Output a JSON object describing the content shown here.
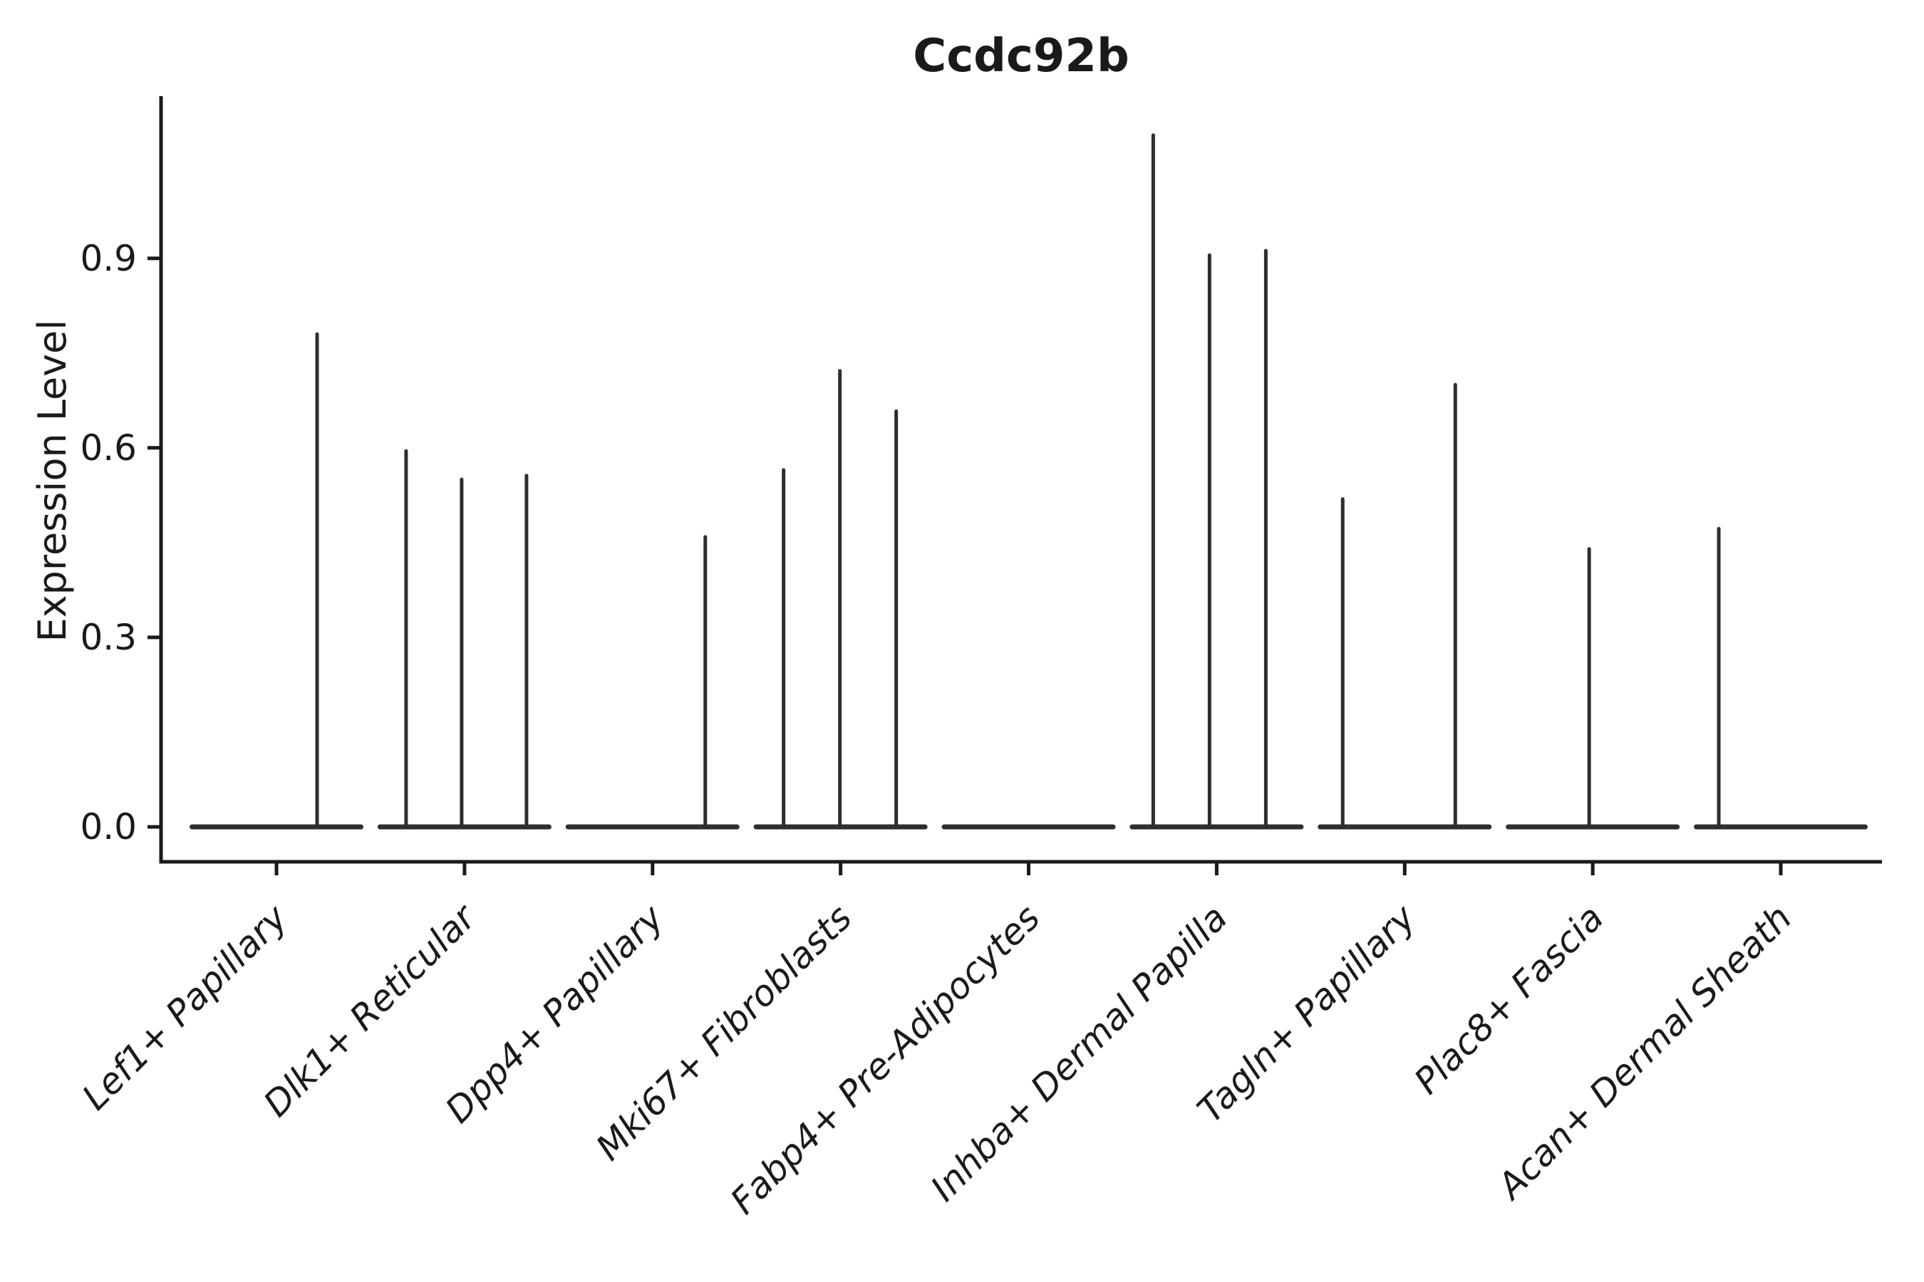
{
  "title": "Ccdc92b",
  "colors": {
    "background": "#ffffff",
    "axis": "#1a1a1a",
    "violin": "#2e2e2e"
  },
  "chart_data": {
    "type": "violin",
    "title": "Ccdc92b",
    "xlabel": "",
    "ylabel": "Expression Level",
    "ylim": [
      0,
      1.16
    ],
    "grid": false,
    "legend": null,
    "ytick_labels": [
      "0.0",
      "0.3",
      "0.6",
      "0.9"
    ],
    "ytick_values": [
      0.0,
      0.3,
      0.6,
      0.9
    ],
    "categories": [
      "Lef1+ Papillary",
      "Dlk1+ Reticular",
      "Dpp4+ Papillary",
      "Mki67+ Fibroblasts",
      "Fabp4+ Pre-Adipocytes",
      "Inhba+ Dermal Papilla",
      "Tagln+ Papillary",
      "Plac8+ Fascia",
      "Acan+ Dermal Sheath"
    ],
    "series": [
      {
        "name": "Lef1+ Papillary",
        "baseline_value": 0.0,
        "spikes": [
          {
            "offset": 57,
            "value": 0.78
          }
        ]
      },
      {
        "name": "Dlk1+ Reticular",
        "baseline_value": 0.0,
        "spikes": [
          {
            "offset": -82,
            "value": 0.595
          },
          {
            "offset": -4,
            "value": 0.55
          },
          {
            "offset": 87,
            "value": 0.556
          }
        ]
      },
      {
        "name": "Dpp4+ Papillary",
        "baseline_value": 0.0,
        "spikes": [
          {
            "offset": 74,
            "value": 0.459
          }
        ]
      },
      {
        "name": "Mki67+ Fibroblasts",
        "baseline_value": 0.0,
        "spikes": [
          {
            "offset": -80,
            "value": 0.565
          },
          {
            "offset": -1,
            "value": 0.722
          },
          {
            "offset": 78,
            "value": 0.658
          }
        ]
      },
      {
        "name": "Fabp4+ Pre-Adipocytes",
        "baseline_value": 0.0,
        "spikes": []
      },
      {
        "name": "Inhba+ Dermal Papilla",
        "baseline_value": 0.0,
        "spikes": [
          {
            "offset": -89,
            "value": 1.095
          },
          {
            "offset": -10,
            "value": 0.905
          },
          {
            "offset": 69,
            "value": 0.912
          }
        ]
      },
      {
        "name": "Tagln+ Papillary",
        "baseline_value": 0.0,
        "spikes": [
          {
            "offset": -87,
            "value": 0.519
          },
          {
            "offset": 71,
            "value": 0.7
          }
        ]
      },
      {
        "name": "Plac8+ Fascia",
        "baseline_value": 0.0,
        "spikes": [
          {
            "offset": -5,
            "value": 0.44
          }
        ]
      },
      {
        "name": "Acan+ Dermal Sheath",
        "baseline_value": 0.0,
        "spikes": [
          {
            "offset": -87,
            "value": 0.472
          }
        ]
      }
    ]
  }
}
